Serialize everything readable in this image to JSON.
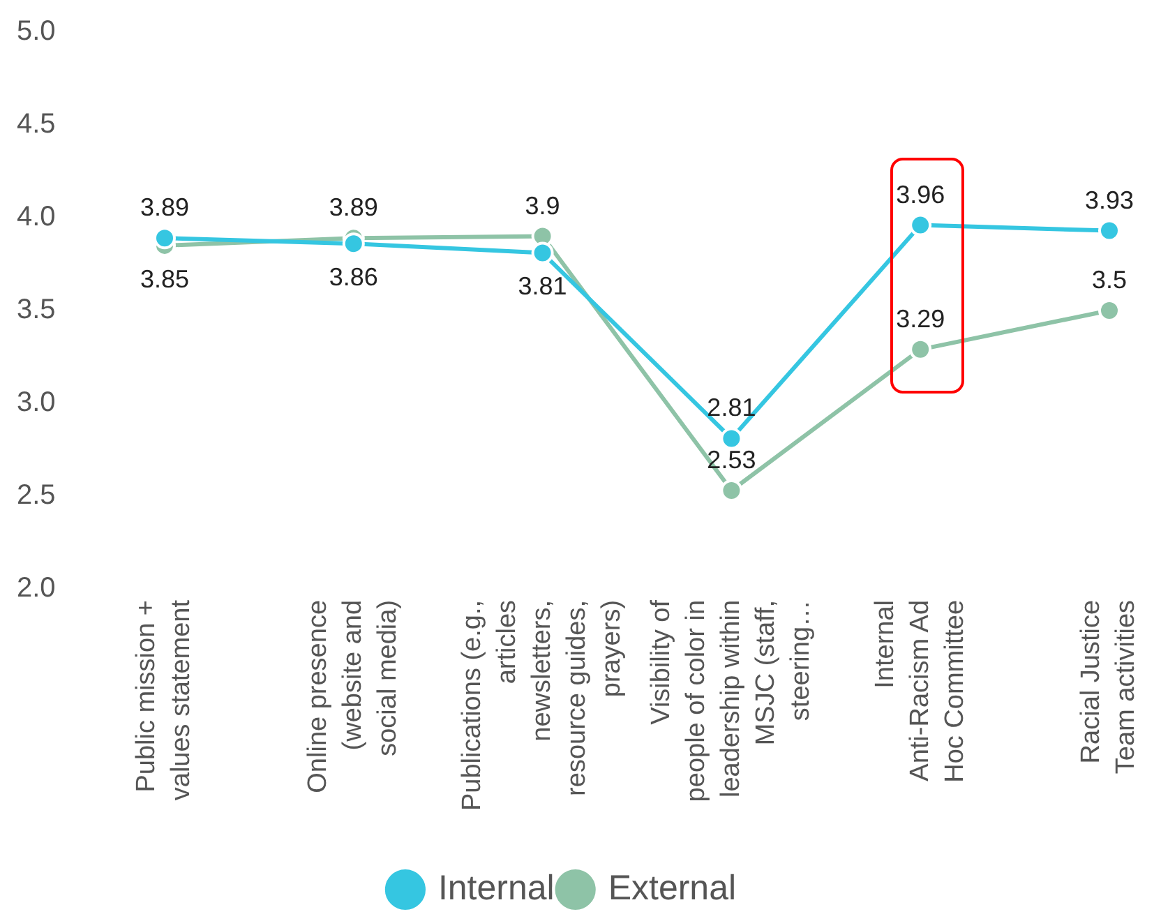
{
  "chart_data": {
    "type": "line",
    "categories": [
      "Public mission +\nvalues statement",
      "Online presence\n(website and\nsocial media)",
      "Publications (e.g.,\narticles\nnewsletters,\nresource guides,\nprayers)",
      "Visibility of\npeople of color in\nleadership within\nMSJC (staff,\nsteering…",
      "Internal\nAnti-Racism Ad\nHoc Committee",
      "Racial Justice\nTeam activities"
    ],
    "series": [
      {
        "name": "Internal",
        "color": "#35c6e1",
        "values": [
          3.89,
          3.86,
          3.81,
          2.81,
          3.96,
          3.93
        ]
      },
      {
        "name": "External",
        "color": "#8ec3a7",
        "values": [
          3.85,
          3.89,
          3.9,
          2.53,
          3.29,
          3.5
        ]
      }
    ],
    "ylim": [
      2,
      5
    ],
    "yticks": [
      {
        "value": 2,
        "label": "2.0"
      },
      2.5,
      {
        "value": 3,
        "label": "3.0"
      },
      3.5,
      {
        "value": 4,
        "label": "4.0"
      },
      4.5,
      {
        "value": 5,
        "label": "5.0"
      }
    ],
    "data_labels": true,
    "legend": "bottom",
    "marker": "circle",
    "line_style": "solid"
  }
}
